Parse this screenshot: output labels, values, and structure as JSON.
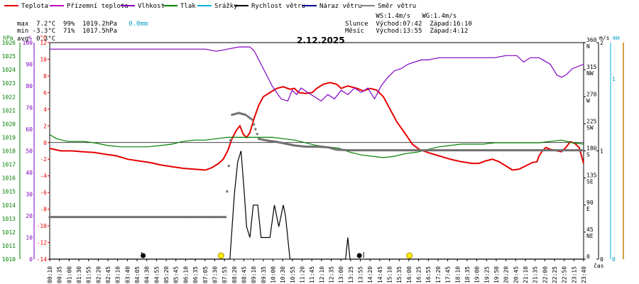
{
  "legend": [
    {
      "label": "Teplota",
      "color": "#e60000"
    },
    {
      "label": "Přízemní teplota",
      "color": "#c000c0"
    },
    {
      "label": "Vlhkost",
      "color": "#8000c0"
    },
    {
      "label": "Tlak",
      "color": "#008000"
    },
    {
      "label": "Srážky",
      "color": "#00b0e0"
    },
    {
      "label": "Rychlost větru",
      "color": "#000000"
    },
    {
      "label": "Náraz větru",
      "color": "#000090"
    },
    {
      "label": "Směr větru",
      "color": "#808080"
    }
  ],
  "stats": {
    "max": "max  7.2°C  99%  1019.2hPa",
    "max_precip": "0.0mm",
    "min": "min -3.3°C  71%  1017.5hPa",
    "avg": "avg  0.3°C"
  },
  "sun": {
    "ws": "        WS:1.4m/s   WG:1.4m/s",
    "slunce": "Slunce  Východ:07:42  Západ:16:10",
    "mesic": "Měsíc   Východ:13:55  Západ:4:12"
  },
  "date": "2.12.2025",
  "units": {
    "hpa": "hPa",
    "pct": "%",
    "degc": "°C",
    "ms": "m/s",
    "mm": "mm",
    "cas": "čas"
  },
  "axes": {
    "hpa_ticks": [
      "1026",
      "1025",
      "1024",
      "1023",
      "1022",
      "1021",
      "1020",
      "1019",
      "1018",
      "1017",
      "1016",
      "1015",
      "1014",
      "1013",
      "1012",
      "1011",
      "1010"
    ],
    "pct_ticks": [
      "100",
      "90",
      "80",
      "70",
      "60",
      "50",
      "40",
      "30",
      "20",
      "10",
      "0"
    ],
    "temp_ticks": [
      "12",
      "10",
      "8",
      "6",
      "4",
      "2",
      "0",
      "-2",
      "-4",
      "-6",
      "-8",
      "-10",
      "-12",
      "-14"
    ],
    "dir_ticks": [
      {
        "deg": "360",
        "name": "N"
      },
      {
        "deg": "315",
        "name": "NW"
      },
      {
        "deg": "270",
        "name": "W"
      },
      {
        "deg": "225",
        "name": "SW"
      },
      {
        "deg": "180",
        "name": "S"
      },
      {
        "deg": "135",
        "name": "SE"
      },
      {
        "deg": "90",
        "name": "E"
      },
      {
        "deg": "45",
        "name": "NE"
      },
      {
        "deg": "0",
        "name": ""
      }
    ],
    "ms_ticks": [
      "2",
      "1",
      "0"
    ],
    "mm_ticks": [
      "1",
      "0"
    ],
    "time_ticks": [
      "00:10",
      "00:35",
      "01:00",
      "01:30",
      "01:55",
      "02:20",
      "02:45",
      "03:10",
      "03:40",
      "04:05",
      "04:30",
      "04:55",
      "05:20",
      "05:45",
      "06:10",
      "06:35",
      "07:05",
      "07:30",
      "07:55",
      "08:20",
      "08:45",
      "09:10",
      "09:35",
      "10:00",
      "10:30",
      "10:55",
      "11:20",
      "11:45",
      "12:10",
      "12:35",
      "13:00",
      "13:25",
      "13:55",
      "14:20",
      "14:45",
      "15:10",
      "15:35",
      "16:00",
      "16:25",
      "16:55",
      "17:20",
      "17:45",
      "18:10",
      "18:35",
      "19:00",
      "19:25",
      "19:50",
      "20:20",
      "20:45",
      "21:10",
      "21:35",
      "22:00",
      "22:25",
      "22:50",
      "23:15",
      "23:40"
    ]
  },
  "chart_data": {
    "type": "line",
    "title": "2.12.2025",
    "xlabel": "čas",
    "xlim": [
      0,
      24
    ],
    "ylim_temp": [
      -14,
      12
    ],
    "ylim_humidity": [
      0,
      100
    ],
    "ylim_pressure": [
      1010,
      1026
    ],
    "ylim_wind_dir": [
      0,
      360
    ],
    "ylim_wind_speed": [
      0,
      2
    ],
    "series": [
      {
        "name": "Teplota",
        "unit": "°C",
        "axis": "temp",
        "color": "#e60000",
        "points": [
          [
            0,
            -0.7
          ],
          [
            0.5,
            -1
          ],
          [
            1,
            -1
          ],
          [
            1.5,
            -1.1
          ],
          [
            2,
            -1.2
          ],
          [
            2.5,
            -1.4
          ],
          [
            3,
            -1.6
          ],
          [
            3.5,
            -2
          ],
          [
            4,
            -2.2
          ],
          [
            4.5,
            -2.4
          ],
          [
            5,
            -2.7
          ],
          [
            5.5,
            -2.9
          ],
          [
            6,
            -3.1
          ],
          [
            6.5,
            -3.2
          ],
          [
            7,
            -3.3
          ],
          [
            7.3,
            -3
          ],
          [
            7.6,
            -2.5
          ],
          [
            7.8,
            -2
          ],
          [
            8,
            -1
          ],
          [
            8.2,
            0.5
          ],
          [
            8.4,
            1.5
          ],
          [
            8.55,
            2
          ],
          [
            8.7,
            1
          ],
          [
            8.85,
            0.6
          ],
          [
            9.0,
            1.2
          ],
          [
            9.2,
            3
          ],
          [
            9.4,
            4.5
          ],
          [
            9.6,
            5.5
          ],
          [
            9.9,
            6
          ],
          [
            10.2,
            6.5
          ],
          [
            10.5,
            6.7
          ],
          [
            10.8,
            6.4
          ],
          [
            11.0,
            6.5
          ],
          [
            11.2,
            6
          ],
          [
            11.5,
            5.9
          ],
          [
            11.8,
            6
          ],
          [
            12.0,
            6.5
          ],
          [
            12.3,
            7
          ],
          [
            12.6,
            7.2
          ],
          [
            12.9,
            7
          ],
          [
            13.1,
            6.5
          ],
          [
            13.4,
            6.8
          ],
          [
            13.8,
            6.5
          ],
          [
            14.1,
            6.2
          ],
          [
            14.4,
            6.5
          ],
          [
            14.7,
            6.3
          ],
          [
            15.0,
            5.5
          ],
          [
            15.3,
            4
          ],
          [
            15.6,
            2.5
          ],
          [
            16.0,
            1
          ],
          [
            16.3,
            -0.2
          ],
          [
            16.6,
            -0.8
          ],
          [
            17.0,
            -1.2
          ],
          [
            17.5,
            -1.6
          ],
          [
            18.0,
            -2
          ],
          [
            18.5,
            -2.3
          ],
          [
            19.0,
            -2.5
          ],
          [
            19.3,
            -2.5
          ],
          [
            19.6,
            -2.2
          ],
          [
            19.9,
            -2
          ],
          [
            20.2,
            -2.3
          ],
          [
            20.5,
            -2.8
          ],
          [
            20.8,
            -3.3
          ],
          [
            21.1,
            -3.2
          ],
          [
            21.4,
            -2.8
          ],
          [
            21.7,
            -2.4
          ],
          [
            21.9,
            -2.3
          ],
          [
            22.0,
            -1.6
          ],
          [
            22.15,
            -1
          ],
          [
            22.3,
            -0.6
          ],
          [
            22.5,
            -0.8
          ],
          [
            22.8,
            -1
          ],
          [
            23.0,
            -1.1
          ],
          [
            23.2,
            -0.6
          ],
          [
            23.4,
            0.1
          ],
          [
            23.6,
            -0.1
          ],
          [
            23.8,
            -0.6
          ],
          [
            24.0,
            -2.5
          ]
        ]
      },
      {
        "name": "Vlhkost",
        "unit": "%",
        "axis": "humidity",
        "color": "#8000c0",
        "points": [
          [
            0,
            97
          ],
          [
            1,
            97
          ],
          [
            2,
            97
          ],
          [
            3,
            97
          ],
          [
            4,
            97
          ],
          [
            5,
            97
          ],
          [
            6,
            97
          ],
          [
            7,
            97
          ],
          [
            7.5,
            96
          ],
          [
            8,
            97
          ],
          [
            8.5,
            98
          ],
          [
            9.0,
            98
          ],
          [
            9.2,
            96
          ],
          [
            9.5,
            90
          ],
          [
            10.0,
            80
          ],
          [
            10.4,
            74
          ],
          [
            10.7,
            73
          ],
          [
            10.9,
            78
          ],
          [
            11.1,
            76
          ],
          [
            11.3,
            79
          ],
          [
            11.6,
            77
          ],
          [
            11.9,
            75
          ],
          [
            12.2,
            73
          ],
          [
            12.5,
            76
          ],
          [
            12.8,
            74
          ],
          [
            13.1,
            78
          ],
          [
            13.4,
            76
          ],
          [
            13.7,
            79
          ],
          [
            14.0,
            77
          ],
          [
            14.3,
            79
          ],
          [
            14.6,
            74
          ],
          [
            14.9,
            80
          ],
          [
            15.2,
            84
          ],
          [
            15.5,
            87
          ],
          [
            15.8,
            88
          ],
          [
            16.1,
            90
          ],
          [
            16.4,
            91
          ],
          [
            16.7,
            92
          ],
          [
            17.0,
            92
          ],
          [
            17.5,
            93
          ],
          [
            18,
            93
          ],
          [
            19,
            93
          ],
          [
            20,
            93
          ],
          [
            20.5,
            94
          ],
          [
            21,
            94
          ],
          [
            21.3,
            91
          ],
          [
            21.6,
            93
          ],
          [
            22.0,
            93
          ],
          [
            22.5,
            90
          ],
          [
            22.8,
            85
          ],
          [
            23.0,
            84
          ],
          [
            23.2,
            85
          ],
          [
            23.5,
            88
          ],
          [
            24,
            90
          ]
        ]
      },
      {
        "name": "Tlak",
        "unit": "hPa",
        "axis": "pressure",
        "color": "#008000",
        "points": [
          [
            0,
            1019.2
          ],
          [
            0.3,
            1018.9
          ],
          [
            0.8,
            1018.7
          ],
          [
            1.5,
            1018.7
          ],
          [
            2,
            1018.6
          ],
          [
            2.6,
            1018.4
          ],
          [
            3.2,
            1018.3
          ],
          [
            3.8,
            1018.3
          ],
          [
            4.4,
            1018.3
          ],
          [
            5,
            1018.4
          ],
          [
            5.5,
            1018.5
          ],
          [
            6,
            1018.7
          ],
          [
            6.5,
            1018.8
          ],
          [
            7,
            1018.8
          ],
          [
            7.5,
            1018.9
          ],
          [
            8,
            1019
          ],
          [
            8.5,
            1019
          ],
          [
            9,
            1019
          ],
          [
            9.5,
            1019
          ],
          [
            10,
            1019
          ],
          [
            10.5,
            1018.9
          ],
          [
            11,
            1018.8
          ],
          [
            11.5,
            1018.6
          ],
          [
            12,
            1018.4
          ],
          [
            12.5,
            1018.3
          ],
          [
            13,
            1018.2
          ],
          [
            13.5,
            1017.9
          ],
          [
            14,
            1017.7
          ],
          [
            14.5,
            1017.6
          ],
          [
            15,
            1017.5
          ],
          [
            15.5,
            1017.6
          ],
          [
            16,
            1017.8
          ],
          [
            16.5,
            1017.9
          ],
          [
            17,
            1018.1
          ],
          [
            17.5,
            1018.3
          ],
          [
            18,
            1018.4
          ],
          [
            18.5,
            1018.5
          ],
          [
            19,
            1018.5
          ],
          [
            19.5,
            1018.5
          ],
          [
            20,
            1018.6
          ],
          [
            20.5,
            1018.6
          ],
          [
            21,
            1018.6
          ],
          [
            21.5,
            1018.6
          ],
          [
            22,
            1018.6
          ],
          [
            22.5,
            1018.7
          ],
          [
            23,
            1018.8
          ],
          [
            23.5,
            1018.6
          ],
          [
            24,
            1018.5
          ]
        ]
      },
      {
        "name": "Rychlost větru",
        "unit": "m/s",
        "axis": "wind_speed",
        "color": "#000000",
        "points": [
          [
            0,
            0
          ],
          [
            8.1,
            0
          ],
          [
            8.3,
            0.6
          ],
          [
            8.45,
            0.9
          ],
          [
            8.6,
            1.0
          ],
          [
            8.75,
            0.6
          ],
          [
            8.85,
            0.3
          ],
          [
            9.0,
            0.2
          ],
          [
            9.15,
            0.5
          ],
          [
            9.35,
            0.5
          ],
          [
            9.5,
            0.2
          ],
          [
            9.9,
            0.2
          ],
          [
            10.1,
            0.5
          ],
          [
            10.3,
            0.3
          ],
          [
            10.5,
            0.5
          ],
          [
            10.6,
            0.4
          ],
          [
            10.8,
            0
          ],
          [
            13.3,
            0
          ],
          [
            13.4,
            0.2
          ],
          [
            13.5,
            0
          ],
          [
            24,
            0
          ]
        ]
      }
    ],
    "wind_direction": {
      "name": "Směr větru",
      "unit": "°",
      "color": "#707070",
      "points": [
        [
          0,
          70
        ],
        [
          1,
          70
        ],
        [
          2,
          70
        ],
        [
          3,
          70
        ],
        [
          4,
          70
        ],
        [
          5,
          70
        ],
        [
          6,
          70
        ],
        [
          7,
          70
        ],
        [
          7.9,
          70
        ],
        [
          8.2,
          240
        ],
        [
          8.5,
          243
        ],
        [
          8.8,
          240
        ],
        [
          9.1,
          232
        ],
        [
          9.4,
          200
        ],
        [
          9.8,
          197
        ],
        [
          10.2,
          195
        ],
        [
          10.6,
          192
        ],
        [
          11,
          189
        ],
        [
          11.5,
          187
        ],
        [
          12,
          187
        ],
        [
          12.5,
          186
        ],
        [
          12.9,
          182
        ],
        [
          13.5,
          181
        ],
        [
          14,
          181
        ],
        [
          15,
          181
        ],
        [
          16,
          181
        ],
        [
          17,
          181
        ],
        [
          18,
          181
        ],
        [
          19,
          181
        ],
        [
          20,
          181
        ],
        [
          21,
          181
        ],
        [
          22,
          181
        ],
        [
          23,
          181
        ],
        [
          24,
          181
        ]
      ]
    },
    "wind_gust": {
      "name": "Náraz větru",
      "unit": "m/s",
      "color": "#000090",
      "points": [
        [
          8.2,
          0
        ],
        [
          8.5,
          0
        ],
        [
          9.0,
          0
        ]
      ]
    },
    "precipitation": {
      "name": "Srážky",
      "unit": "mm",
      "color": "#00b0e0",
      "points": [
        [
          8.1,
          0
        ],
        [
          10.8,
          0
        ]
      ]
    }
  }
}
